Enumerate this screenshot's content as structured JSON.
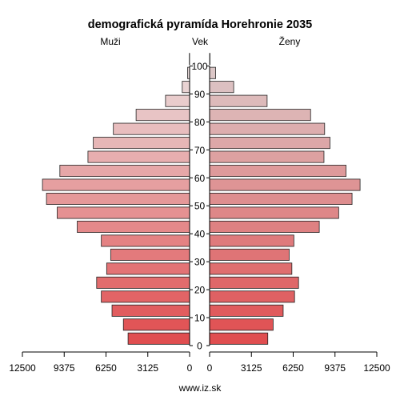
{
  "chart_data": {
    "type": "bar",
    "subtype": "population-pyramid",
    "title": "demografická pyramída Horehronie 2035",
    "left_label": "Muži",
    "center_label": "Vek",
    "right_label": "Ženy",
    "footer": "www.iz.sk",
    "x_ticks": [
      "12500",
      "9375",
      "6250",
      "3125",
      "0"
    ],
    "age_ticks": [
      "0",
      "10",
      "20",
      "30",
      "40",
      "50",
      "60",
      "70",
      "80",
      "90",
      "100"
    ],
    "xlim": [
      0,
      12500
    ],
    "age_groups": [
      "0",
      "5",
      "10",
      "15",
      "20",
      "25",
      "30",
      "35",
      "40",
      "45",
      "50",
      "55",
      "60",
      "65",
      "70",
      "75",
      "80",
      "85",
      "90",
      "95",
      "100"
    ],
    "series": [
      {
        "name": "Muži",
        "values": [
          4600,
          4950,
          5800,
          6600,
          6950,
          6200,
          5900,
          6600,
          8400,
          9900,
          10700,
          11000,
          9700,
          7600,
          7200,
          5700,
          4000,
          1800,
          550,
          150,
          20
        ]
      },
      {
        "name": "Ženy",
        "values": [
          4350,
          4750,
          5500,
          6350,
          6650,
          6150,
          5950,
          6300,
          8200,
          9650,
          10650,
          11250,
          10200,
          8550,
          9000,
          8600,
          7550,
          4300,
          1800,
          450,
          30
        ]
      }
    ],
    "grid": false
  }
}
